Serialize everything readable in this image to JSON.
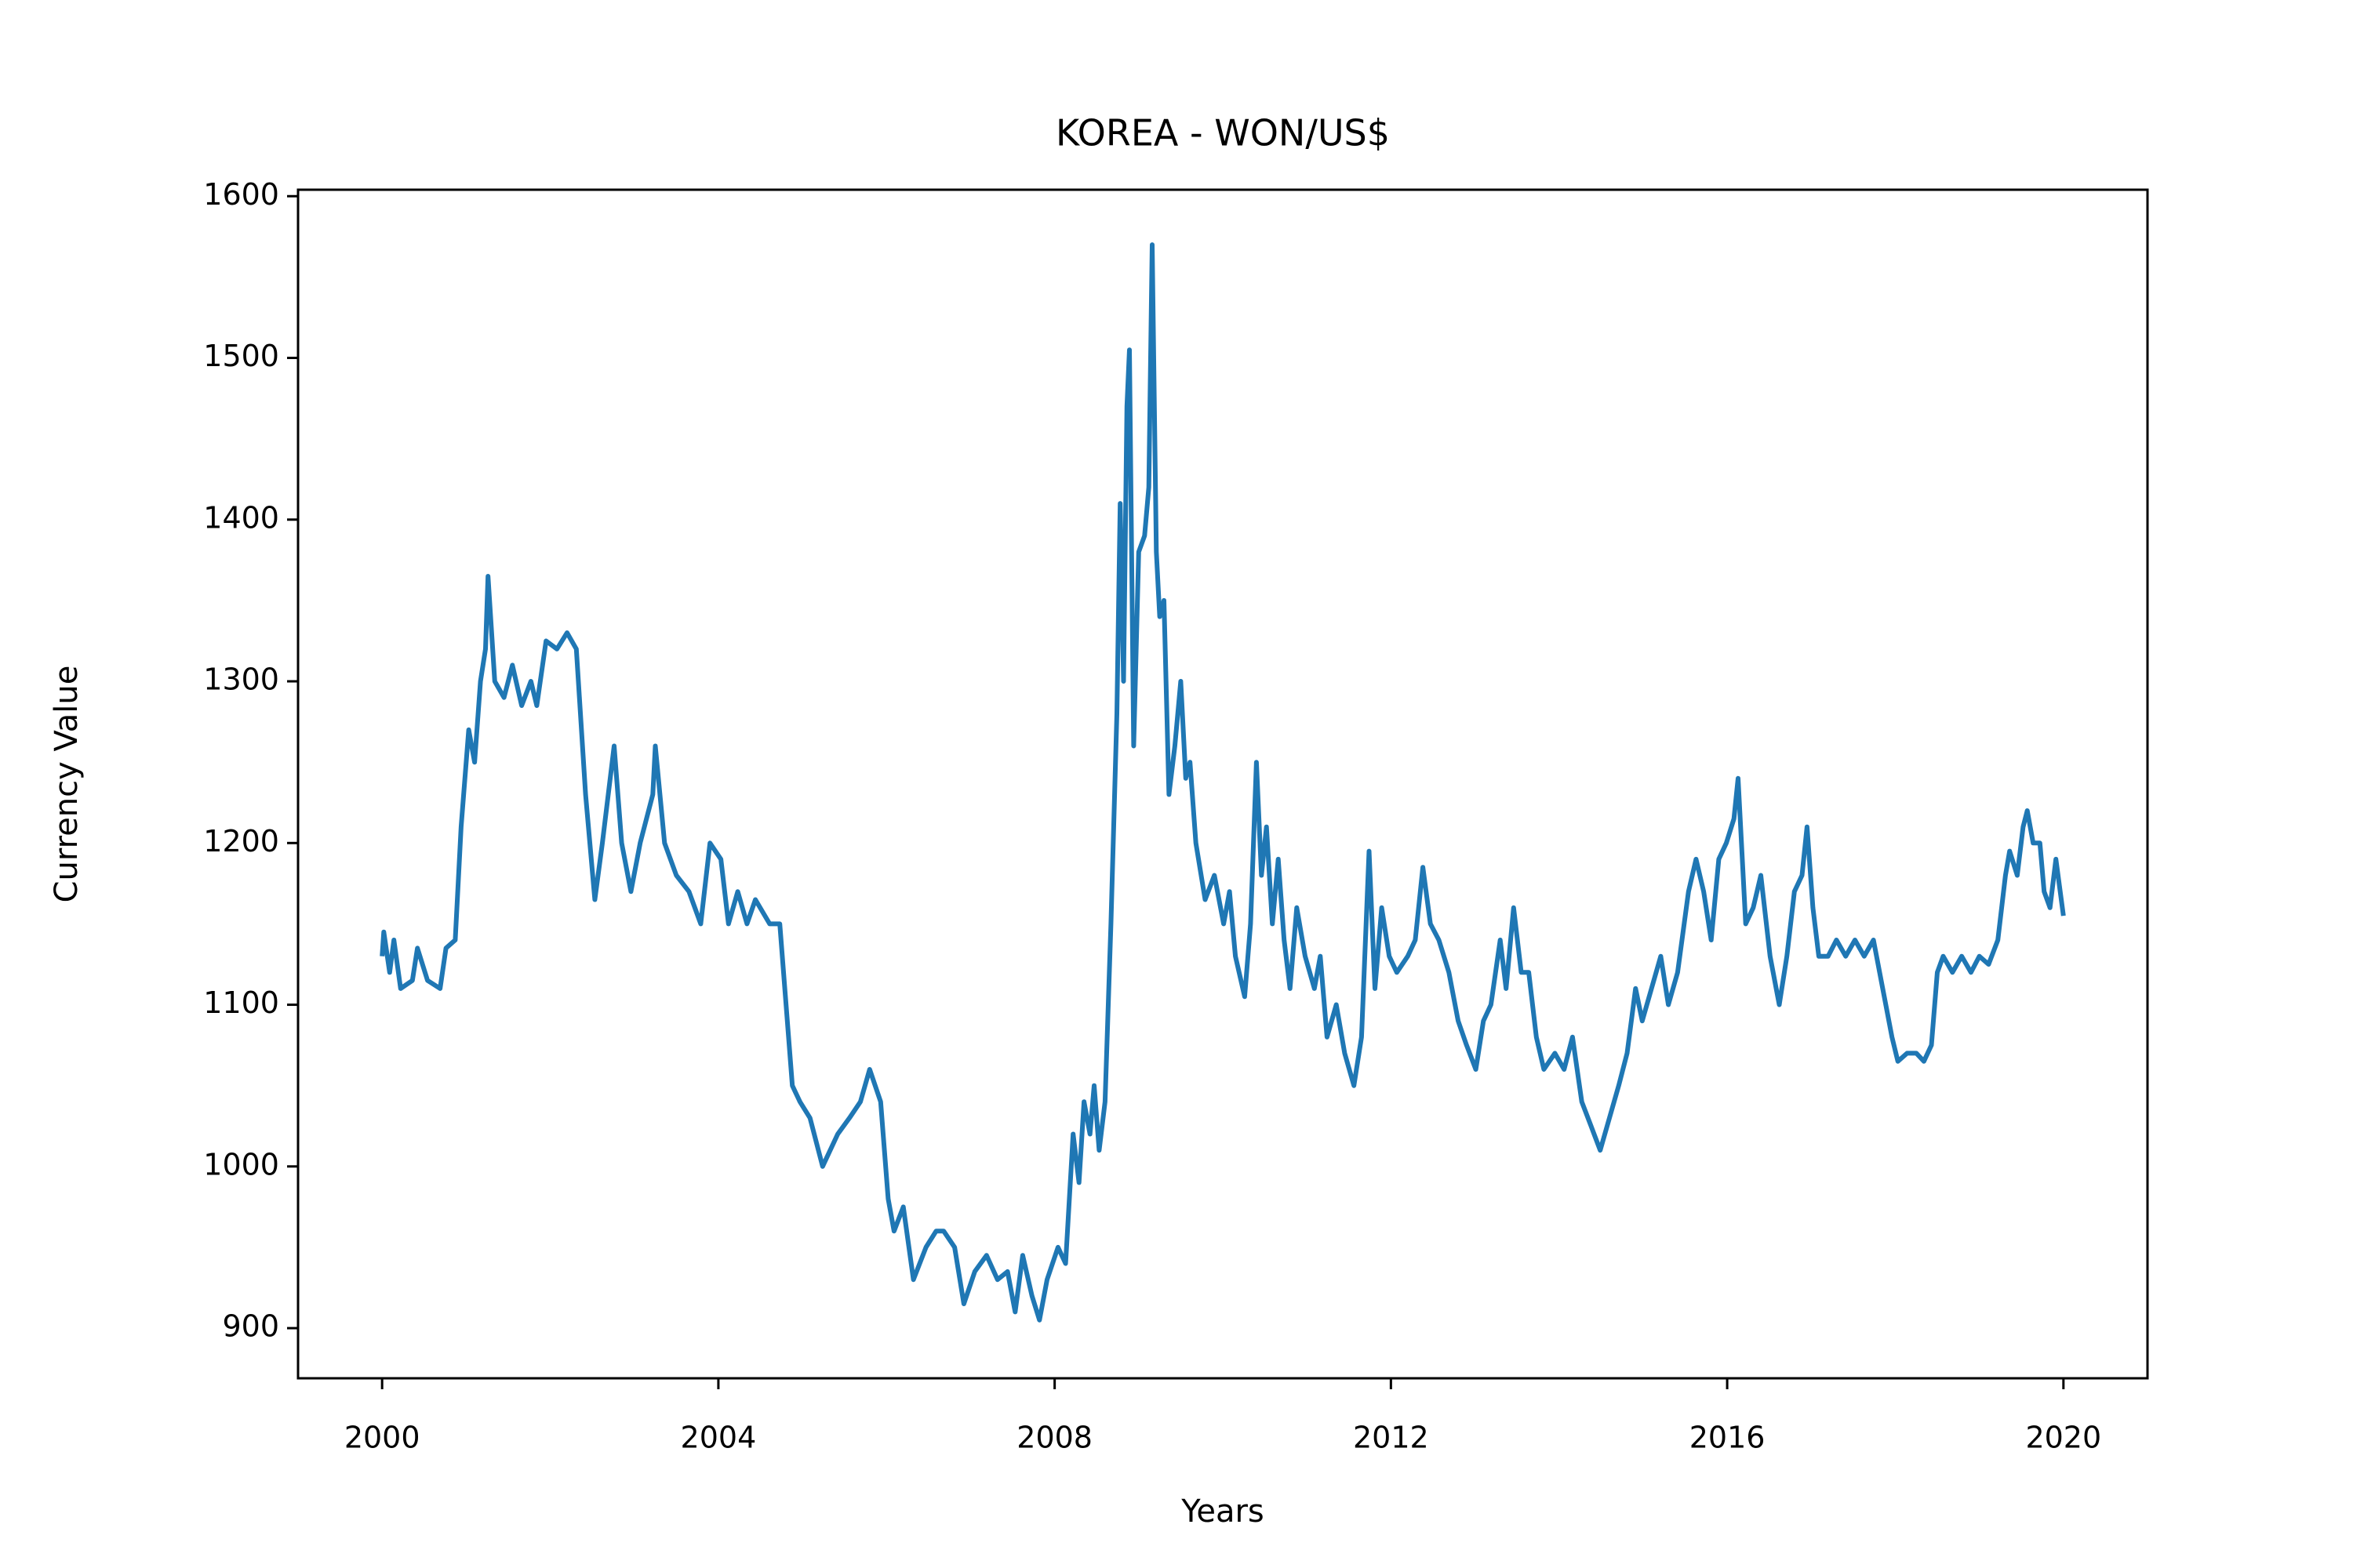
{
  "chart_data": {
    "type": "line",
    "title": "KOREA - WON/US$",
    "x_label": "Years",
    "y_label": "Currency Value",
    "xlim": [
      1999.0,
      2021.0
    ],
    "xticks": [
      2000,
      2004,
      2008,
      2012,
      2016,
      2020
    ],
    "ylim": [
      869,
      1604
    ],
    "yticks": [
      900,
      1000,
      1100,
      1200,
      1300,
      1400,
      1500,
      1600
    ],
    "grid": false,
    "series": [
      {
        "color": "#1f77b4",
        "x": [
          2000.0,
          2000.02,
          2000.09,
          2000.14,
          2000.22,
          2000.36,
          2000.42,
          2000.54,
          2000.69,
          2000.76,
          2000.87,
          2000.94,
          2001.03,
          2001.1,
          2001.17,
          2001.23,
          2001.26,
          2001.34,
          2001.45,
          2001.55,
          2001.66,
          2001.77,
          2001.84,
          2001.95,
          2002.08,
          2002.2,
          2002.31,
          2002.42,
          2002.53,
          2002.62,
          2002.76,
          2002.85,
          2002.96,
          2003.07,
          2003.22,
          2003.25,
          2003.36,
          2003.5,
          2003.65,
          2003.79,
          2003.9,
          2004.03,
          2004.12,
          2004.23,
          2004.34,
          2004.44,
          2004.61,
          2004.73,
          2004.88,
          2004.97,
          2005.09,
          2005.24,
          2005.42,
          2005.56,
          2005.69,
          2005.8,
          2005.93,
          2006.02,
          2006.09,
          2006.2,
          2006.32,
          2006.47,
          2006.59,
          2006.68,
          2006.81,
          2006.92,
          2007.05,
          2007.19,
          2007.32,
          2007.44,
          2007.53,
          2007.62,
          2007.73,
          2007.82,
          2007.91,
          2008.04,
          2008.13,
          2008.22,
          2008.29,
          2008.35,
          2008.42,
          2008.47,
          2008.53,
          2008.6,
          2008.67,
          2008.74,
          2008.78,
          2008.82,
          2008.86,
          2008.89,
          2008.94,
          2009.0,
          2009.07,
          2009.12,
          2009.16,
          2009.21,
          2009.25,
          2009.3,
          2009.36,
          2009.43,
          2009.5,
          2009.56,
          2009.61,
          2009.68,
          2009.79,
          2009.9,
          2010.01,
          2010.08,
          2010.15,
          2010.26,
          2010.33,
          2010.4,
          2010.46,
          2010.52,
          2010.59,
          2010.66,
          2010.73,
          2010.8,
          2010.88,
          2010.98,
          2011.09,
          2011.16,
          2011.24,
          2011.35,
          2011.45,
          2011.56,
          2011.65,
          2011.74,
          2011.81,
          2011.89,
          2011.98,
          2012.07,
          2012.2,
          2012.29,
          2012.38,
          2012.47,
          2012.57,
          2012.69,
          2012.8,
          2012.9,
          2013.01,
          2013.1,
          2013.19,
          2013.3,
          2013.37,
          2013.46,
          2013.55,
          2013.64,
          2013.73,
          2013.82,
          2013.95,
          2014.06,
          2014.16,
          2014.27,
          2014.38,
          2014.49,
          2014.6,
          2014.71,
          2014.81,
          2014.91,
          2014.99,
          2015.1,
          2015.21,
          2015.3,
          2015.41,
          2015.54,
          2015.63,
          2015.72,
          2015.81,
          2015.9,
          2015.99,
          2016.08,
          2016.13,
          2016.22,
          2016.31,
          2016.4,
          2016.51,
          2016.62,
          2016.71,
          2016.8,
          2016.89,
          2016.95,
          2017.02,
          2017.09,
          2017.2,
          2017.3,
          2017.41,
          2017.52,
          2017.63,
          2017.74,
          2017.85,
          2017.96,
          2018.03,
          2018.14,
          2018.25,
          2018.34,
          2018.43,
          2018.5,
          2018.57,
          2018.68,
          2018.79,
          2018.9,
          2019.0,
          2019.11,
          2019.22,
          2019.31,
          2019.36,
          2019.45,
          2019.52,
          2019.57,
          2019.64,
          2019.72,
          2019.77,
          2019.84,
          2019.91,
          2020.0
        ],
        "values": [
          1130,
          1145,
          1120,
          1140,
          1110,
          1115,
          1135,
          1115,
          1110,
          1135,
          1140,
          1210,
          1270,
          1250,
          1300,
          1320,
          1365,
          1300,
          1290,
          1310,
          1285,
          1300,
          1285,
          1325,
          1320,
          1330,
          1320,
          1230,
          1165,
          1200,
          1260,
          1200,
          1170,
          1200,
          1230,
          1260,
          1200,
          1180,
          1170,
          1150,
          1200,
          1190,
          1150,
          1170,
          1150,
          1165,
          1150,
          1150,
          1050,
          1040,
          1030,
          1000,
          1020,
          1030,
          1040,
          1060,
          1040,
          980,
          960,
          975,
          930,
          950,
          960,
          960,
          950,
          915,
          935,
          945,
          930,
          935,
          910,
          945,
          920,
          905,
          930,
          950,
          940,
          1020,
          990,
          1040,
          1020,
          1050,
          1010,
          1040,
          1150,
          1280,
          1410,
          1300,
          1470,
          1505,
          1260,
          1380,
          1390,
          1420,
          1570,
          1380,
          1340,
          1350,
          1230,
          1260,
          1300,
          1240,
          1250,
          1200,
          1165,
          1180,
          1150,
          1170,
          1130,
          1105,
          1150,
          1250,
          1180,
          1210,
          1150,
          1190,
          1140,
          1110,
          1160,
          1130,
          1110,
          1130,
          1080,
          1100,
          1070,
          1050,
          1080,
          1195,
          1110,
          1160,
          1130,
          1120,
          1130,
          1140,
          1185,
          1150,
          1140,
          1120,
          1090,
          1075,
          1060,
          1090,
          1100,
          1140,
          1110,
          1160,
          1120,
          1120,
          1080,
          1060,
          1070,
          1060,
          1080,
          1040,
          1025,
          1010,
          1030,
          1050,
          1070,
          1110,
          1090,
          1110,
          1130,
          1100,
          1120,
          1170,
          1190,
          1170,
          1140,
          1190,
          1200,
          1215,
          1240,
          1150,
          1160,
          1180,
          1130,
          1100,
          1130,
          1170,
          1180,
          1210,
          1160,
          1130,
          1130,
          1140,
          1130,
          1140,
          1130,
          1140,
          1110,
          1080,
          1065,
          1070,
          1070,
          1065,
          1075,
          1120,
          1130,
          1120,
          1130,
          1120,
          1130,
          1125,
          1140,
          1180,
          1195,
          1180,
          1210,
          1220,
          1200,
          1200,
          1170,
          1160,
          1190,
          1155
        ]
      }
    ]
  }
}
